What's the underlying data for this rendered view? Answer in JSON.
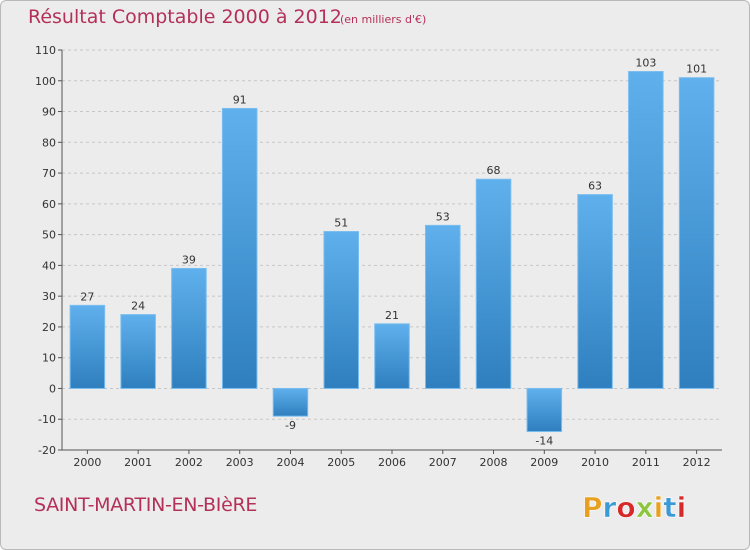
{
  "header": {
    "title": "Résultat Comptable 2000 à 2012",
    "subtitle": "(en milliers d'€)"
  },
  "footer": {
    "town": "SAINT-MARTIN-EN-BIèRE",
    "logo_text": "Proxiti",
    "logo_colors": [
      "#e8a020",
      "#3a9ad8",
      "#d62a2a",
      "#8cc63f",
      "#e8a020",
      "#3a9ad8",
      "#d62a2a"
    ]
  },
  "colors": {
    "title": "#b4305a",
    "bar_top": "#5fb0ec",
    "bar_bottom": "#2f7fbf",
    "bar_stroke": "#78bdf0",
    "grid": "#c6c6c6",
    "axis": "#555555",
    "text": "#333333"
  },
  "chart_data": {
    "type": "bar",
    "categories": [
      "2000",
      "2001",
      "2002",
      "2003",
      "2004",
      "2005",
      "2006",
      "2007",
      "2008",
      "2009",
      "2010",
      "2011",
      "2012"
    ],
    "values": [
      27,
      24,
      39,
      91,
      -9,
      51,
      21,
      53,
      68,
      -14,
      63,
      103,
      101
    ],
    "data_labels": [
      "27",
      "24",
      "39",
      "91",
      "-9",
      "51",
      "21",
      "53",
      "68",
      "-14",
      "63",
      "103",
      "101"
    ],
    "title": "Résultat Comptable 2000 à 2012",
    "subtitle": "(en milliers d'€)",
    "ylim": [
      -20,
      110
    ],
    "yticks": [
      -20,
      -10,
      0,
      10,
      20,
      30,
      40,
      50,
      60,
      70,
      80,
      90,
      100,
      110
    ],
    "grid": "horizontal dashed",
    "legend": "none"
  }
}
